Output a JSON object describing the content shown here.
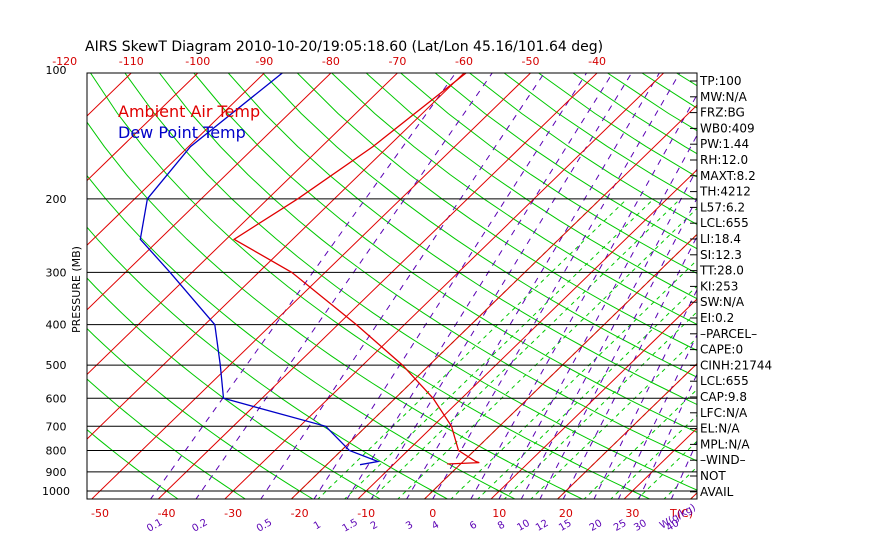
{
  "chart_data": {
    "type": "skewt",
    "title": "AIRS SkewT Diagram 2010-10-20/19:05:18.60 (Lat/Lon 45.16/101.64 deg)",
    "ylabel": "PRESSURE (MB)",
    "xlabel": "T(C)",
    "mixing_label": "W(g/kg)",
    "pressure_ticks": [
      100,
      200,
      300,
      400,
      500,
      600,
      700,
      800,
      900,
      1000
    ],
    "top_temp_ticks": [
      -120,
      -110,
      -100,
      -90,
      -80,
      -70,
      -60,
      -50,
      -40
    ],
    "bottom_temp_ticks": [
      -50,
      -40,
      -30,
      -20,
      -10,
      0,
      10,
      20,
      30
    ],
    "mixing_ratio_ticks": [
      "0.1",
      "0.2",
      "0.5",
      "1",
      "1.5",
      "2",
      "3",
      "4",
      "6",
      "8",
      "10",
      "12",
      "15",
      "20",
      "25",
      "30",
      "40"
    ],
    "xlim": [
      -52,
      40
    ],
    "ylim": [
      1000,
      100
    ],
    "legend": [
      {
        "label": "Ambient Air Temp",
        "color": "#e00000"
      },
      {
        "label": "Dew Point Temp",
        "color": "#0000c8"
      }
    ],
    "series": [
      {
        "name": "Ambient Air Temp",
        "color": "#e00000",
        "points": [
          [
            100,
            -59.7
          ],
          [
            150,
            -62.3
          ],
          [
            200,
            -65.5
          ],
          [
            250,
            -68.8
          ],
          [
            300,
            -55.0
          ],
          [
            400,
            -37.2
          ],
          [
            500,
            -24.0
          ],
          [
            600,
            -14.3
          ],
          [
            700,
            -7.2
          ],
          [
            800,
            -2.4
          ],
          [
            850,
            1.9
          ],
          [
            855,
            2.6
          ],
          [
            862,
            -2.0
          ]
        ]
      },
      {
        "name": "Dew Point Temp",
        "color": "#0000c8",
        "points": [
          [
            100,
            -87.3
          ],
          [
            150,
            -89.7
          ],
          [
            200,
            -88.1
          ],
          [
            250,
            -82.9
          ],
          [
            300,
            -73.3
          ],
          [
            400,
            -58.5
          ],
          [
            500,
            -51.4
          ],
          [
            600,
            -45.8
          ],
          [
            700,
            -26.1
          ],
          [
            800,
            -18.8
          ],
          [
            850,
            -12.8
          ],
          [
            865,
            -15.0
          ]
        ]
      }
    ],
    "indices": [
      "TP:100",
      "MW:N/A",
      "FRZ:BG",
      "WB0:409",
      "PW:1.44",
      "RH:12.0",
      "MAXT:8.2",
      "TH:4212",
      "L57:6.2",
      "LCL:655",
      "LI:18.4",
      "SI:12.3",
      "TT:28.0",
      "KI:253",
      "SW:N/A",
      "EI:0.2",
      "–PARCEL–",
      "CAPE:0",
      "CINH:21744",
      "LCL:655",
      "CAP:9.8",
      "LFC:N/A",
      "EL:N/A",
      "MPL:N/A",
      "–WIND–",
      "NOT",
      "AVAIL"
    ],
    "colors": {
      "isotherm": "#e00000",
      "dry_adiabat": "#00c800",
      "moist_adiabat": "#00c800",
      "mixing_ratio": "#5a00b4",
      "isobar": "#000000"
    }
  }
}
